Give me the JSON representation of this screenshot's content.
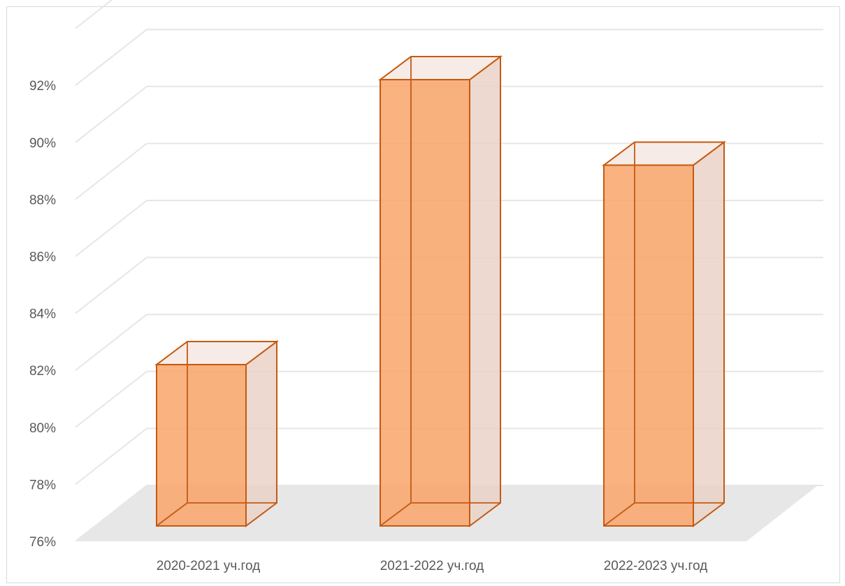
{
  "chart_data": {
    "type": "bar",
    "style": "3d-column",
    "categories": [
      "2020-2021 уч.год",
      "2021-2022 уч.год",
      "2022-2023 уч.год"
    ],
    "values": [
      82.2,
      92.2,
      89.2
    ],
    "ylim": [
      76,
      94
    ],
    "yticks": [
      "76%",
      "78%",
      "80%",
      "82%",
      "84%",
      "86%",
      "88%",
      "90%",
      "92%"
    ],
    "grid": true,
    "legend": "none",
    "colors": {
      "bar_fill": "#f8a46a",
      "bar_edge": "#c55a11",
      "side_fill": "#ead2c6",
      "floor": "#e7e7e7",
      "grid": "#e6e6e6",
      "text": "#595959"
    }
  }
}
